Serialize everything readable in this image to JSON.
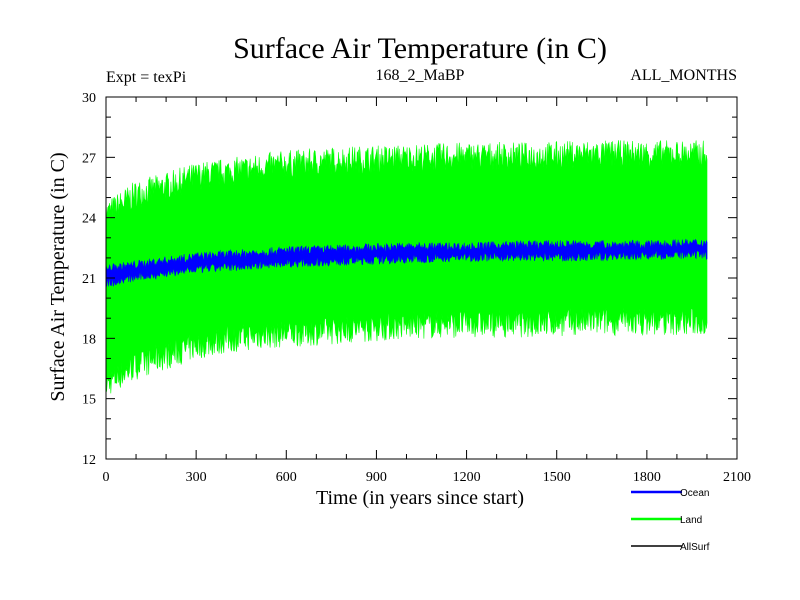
{
  "chart_data": {
    "type": "area",
    "title": "Surface Air Temperature (in C)",
    "subtitle_left": "Expt = texPi",
    "subtitle_center": "168_2_MaBP",
    "subtitle_right": "ALL_MONTHS",
    "xlabel": "Time (in years since start)",
    "ylabel": "Surface Air Temperature (in C)",
    "xlim": [
      0,
      2100
    ],
    "ylim": [
      12,
      30
    ],
    "xticks": [
      "0",
      "300",
      "600",
      "900",
      "1200",
      "1500",
      "1800",
      "2100"
    ],
    "yticks": [
      "12",
      "15",
      "18",
      "21",
      "24",
      "27",
      "30"
    ],
    "series": [
      {
        "name": "Land",
        "color": "#00ff00",
        "x": [
          0,
          100,
          200,
          300,
          400,
          500,
          600,
          800,
          1000,
          1200,
          1400,
          1600,
          1800,
          2000
        ],
        "upper": [
          24.3,
          25.3,
          25.7,
          26.2,
          26.4,
          26.6,
          26.8,
          27.0,
          27.1,
          27.2,
          27.2,
          27.3,
          27.3,
          27.3
        ],
        "lower": [
          15.6,
          16.5,
          17.0,
          17.5,
          17.8,
          18.0,
          18.1,
          18.3,
          18.5,
          18.6,
          18.6,
          18.7,
          18.7,
          18.7
        ]
      },
      {
        "name": "Ocean",
        "color": "#0000ff",
        "x": [
          0,
          100,
          200,
          300,
          400,
          500,
          600,
          800,
          1000,
          1200,
          1400,
          1600,
          1800,
          2000
        ],
        "upper": [
          21.5,
          21.7,
          21.9,
          22.1,
          22.2,
          22.3,
          22.4,
          22.5,
          22.6,
          22.6,
          22.7,
          22.7,
          22.7,
          22.8
        ],
        "lower": [
          20.7,
          21.0,
          21.2,
          21.4,
          21.5,
          21.6,
          21.7,
          21.8,
          21.9,
          22.0,
          22.0,
          22.0,
          22.1,
          22.1
        ]
      },
      {
        "name": "AllSurf",
        "color": "#000000",
        "x": [],
        "values": []
      }
    ],
    "legend": [
      "Ocean",
      "Land",
      "AllSurf"
    ],
    "legend_position": "bottom-right"
  }
}
